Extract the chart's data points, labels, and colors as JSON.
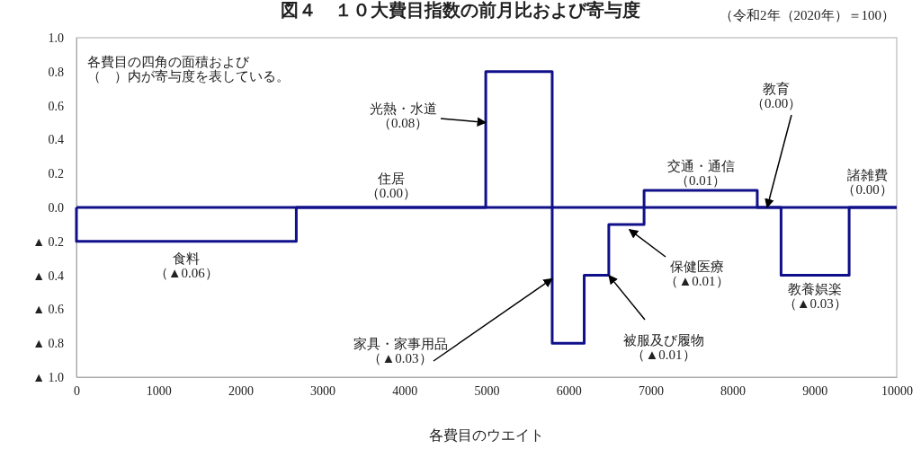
{
  "chart_data": {
    "type": "step",
    "title": "図４　１０大費目指数の前月比および寄与度",
    "xlabel": "各費目のウエイト",
    "x": [
      0,
      0,
      2680,
      4990,
      5800,
      6190,
      6490,
      6920,
      8300,
      8590,
      9420,
      10000
    ],
    "series": [
      {
        "color": "#10108a",
        "values": [
          0,
          -0.2,
          0,
          0.8,
          -0.8,
          -0.4,
          -0.1,
          0.1,
          0,
          -0.4,
          0,
          0
        ]
      }
    ],
    "xlim": [
      0,
      10000
    ],
    "xticks": [
      0,
      1000,
      2000,
      3000,
      4000,
      5000,
      6000,
      7000,
      8000,
      9000,
      10000
    ],
    "ylim": [
      -1,
      1
    ],
    "yticks": [
      {
        "value": 1,
        "label": "1.0"
      },
      {
        "value": 0.8,
        "label": "0.8"
      },
      {
        "value": 0.6,
        "label": "0.6"
      },
      {
        "value": 0.4,
        "label": "0.4"
      },
      {
        "value": 0.2,
        "label": "0.2"
      },
      {
        "value": 0,
        "label": "0.0"
      },
      {
        "value": -0.2,
        "label": "▲ 0.2"
      },
      {
        "value": -0.4,
        "label": "▲ 0.4"
      },
      {
        "value": -0.6,
        "label": "▲ 0.6"
      },
      {
        "value": -0.8,
        "label": "▲ 0.8"
      },
      {
        "value": -1,
        "label": "▲ 1.0"
      }
    ],
    "ref_lines": [
      {
        "axis": "y",
        "value": 0,
        "color": "#10108a"
      }
    ],
    "grid": false,
    "annotations": [
      "各費目の四角の面積および（　）内が寄与度を表している。",
      "（令和2年（2020年）＝100）",
      {
        "text": "食料（▲0.06）",
        "x": 1340,
        "y": -0.2
      },
      {
        "text": "住居（0.00）",
        "x": 3835,
        "y": 0
      },
      {
        "text": "光熱・水道（0.08）",
        "x": 4990,
        "y": 0.5
      },
      {
        "text": "家具・家事用品（▲0.03）",
        "x": 5800,
        "y": -0.42
      },
      {
        "text": "被服及び履物（▲0.01）",
        "x": 6490,
        "y": -0.4
      },
      {
        "text": "保健医療（▲0.01）",
        "x": 6740,
        "y": -0.13
      },
      {
        "text": "交通・通信（0.01）",
        "x": 7610,
        "y": 0.1
      },
      {
        "text": "教育（0.00）",
        "x": 8420,
        "y": 0
      },
      {
        "text": "教養娯楽（▲0.03）",
        "x": 9005,
        "y": -0.4
      },
      {
        "text": "諸雑費（0.00）",
        "x": 9710,
        "y": 0
      }
    ]
  }
}
